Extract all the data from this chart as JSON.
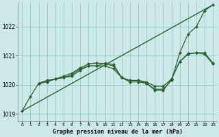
{
  "title": "Graphe pression niveau de la mer (hPa)",
  "background_color": "#cce8e8",
  "grid_color": "#99cccc",
  "line_color": "#2d6030",
  "xlim": [
    -0.5,
    23.5
  ],
  "ylim": [
    1018.75,
    1022.85
  ],
  "yticks": [
    1019,
    1020,
    1021,
    1022
  ],
  "xtick_labels": [
    "0",
    "1",
    "2",
    "3",
    "4",
    "5",
    "6",
    "7",
    "8",
    "9",
    "10",
    "11",
    "12",
    "13",
    "14",
    "15",
    "16",
    "17",
    "18",
    "19",
    "20",
    "21",
    "22",
    "23"
  ],
  "lines": [
    {
      "x": [
        0,
        23
      ],
      "y": [
        1019.1,
        1022.75
      ],
      "marker": null,
      "markersize": 0,
      "linewidth": 1.0
    },
    {
      "x": [
        0,
        1,
        2,
        3,
        4,
        5,
        6,
        7,
        8,
        9,
        10,
        11,
        12,
        13,
        14,
        15,
        16,
        17,
        18,
        19,
        20,
        21,
        22,
        23
      ],
      "y": [
        1019.1,
        1019.6,
        1020.05,
        1020.15,
        1020.2,
        1020.25,
        1020.3,
        1020.5,
        1020.65,
        1020.65,
        1020.75,
        1020.7,
        1020.25,
        1020.15,
        1020.15,
        1020.05,
        1019.85,
        1019.85,
        1020.15,
        1021.1,
        1021.75,
        1022.0,
        1022.55,
        1022.75
      ],
      "marker": "D",
      "markersize": 2.0,
      "linewidth": 0.9
    },
    {
      "x": [
        2,
        3,
        4,
        5,
        6,
        7,
        8,
        9,
        10,
        11,
        12,
        13,
        14,
        15,
        16,
        17,
        18,
        19,
        20,
        21,
        22,
        23
      ],
      "y": [
        1020.05,
        1020.1,
        1020.2,
        1020.25,
        1020.35,
        1020.55,
        1020.65,
        1020.65,
        1020.65,
        1020.55,
        1020.25,
        1020.1,
        1020.1,
        1020.05,
        1019.82,
        1019.8,
        1020.2,
        1020.8,
        1021.05,
        1021.1,
        1021.1,
        1020.75
      ],
      "marker": "D",
      "markersize": 2.0,
      "linewidth": 0.9
    },
    {
      "x": [
        2,
        3,
        4,
        5,
        6,
        7,
        8,
        9,
        10,
        11,
        12,
        13,
        14,
        15,
        16,
        17,
        18,
        19,
        20,
        21,
        22,
        23
      ],
      "y": [
        1020.05,
        1020.15,
        1020.2,
        1020.3,
        1020.4,
        1020.58,
        1020.72,
        1020.75,
        1020.72,
        1020.65,
        1020.25,
        1020.15,
        1020.15,
        1020.1,
        1019.95,
        1019.95,
        1020.2,
        1020.8,
        1021.08,
        1021.1,
        1021.05,
        1020.72
      ],
      "marker": "D",
      "markersize": 2.0,
      "linewidth": 0.9
    }
  ]
}
